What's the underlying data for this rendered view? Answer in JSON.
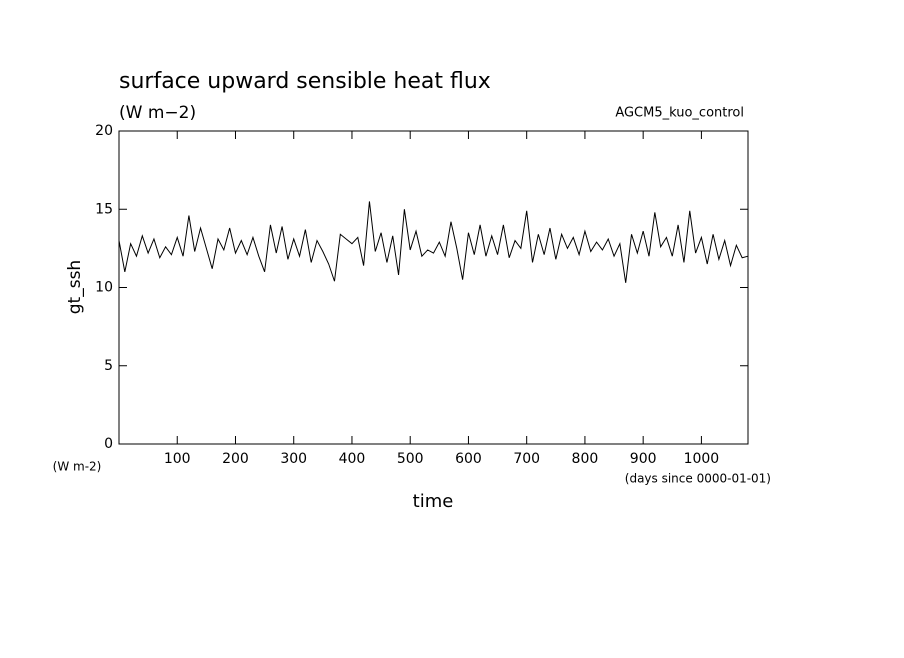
{
  "chart_data": {
    "type": "line",
    "title": "surface upward sensible heat flux",
    "subtitle": "(W m−2)",
    "annotation": "AGCM5_kuo_control",
    "y_label": "gt_ssh",
    "y_units": "(W m-2)",
    "x_label": "time",
    "x_units": "(days since 0000-01-01)",
    "xlim": [
      0,
      1080
    ],
    "ylim": [
      0,
      20
    ],
    "xticks": [
      100,
      200,
      300,
      400,
      500,
      600,
      700,
      800,
      900,
      1000
    ],
    "yticks": [
      0,
      5,
      10,
      15,
      20
    ],
    "grid": false,
    "x": [
      0,
      10,
      20,
      30,
      40,
      50,
      60,
      70,
      80,
      90,
      100,
      110,
      120,
      130,
      140,
      150,
      160,
      170,
      180,
      190,
      200,
      210,
      220,
      230,
      240,
      250,
      260,
      270,
      280,
      290,
      300,
      310,
      320,
      330,
      340,
      350,
      360,
      370,
      380,
      390,
      400,
      410,
      420,
      430,
      440,
      450,
      460,
      470,
      480,
      490,
      500,
      510,
      520,
      530,
      540,
      550,
      560,
      570,
      580,
      590,
      600,
      610,
      620,
      630,
      640,
      650,
      660,
      670,
      680,
      690,
      700,
      710,
      720,
      730,
      740,
      750,
      760,
      770,
      780,
      790,
      800,
      810,
      820,
      830,
      840,
      850,
      860,
      870,
      880,
      890,
      900,
      910,
      920,
      930,
      940,
      950,
      960,
      970,
      980,
      990,
      1000,
      1010,
      1020,
      1030,
      1040,
      1050,
      1060,
      1070,
      1080
    ],
    "series": [
      {
        "color": "#000000",
        "values": [
          13.0,
          11.0,
          12.8,
          12.0,
          13.3,
          12.2,
          13.1,
          11.9,
          12.6,
          12.1,
          13.2,
          12.0,
          14.6,
          12.3,
          13.8,
          12.5,
          11.2,
          13.1,
          12.4,
          13.8,
          12.2,
          13.0,
          12.1,
          13.2,
          12.0,
          11.0,
          14.0,
          12.2,
          13.9,
          11.8,
          13.1,
          12.0,
          13.7,
          11.6,
          13.0,
          12.3,
          11.5,
          10.4,
          13.4,
          13.1,
          12.8,
          13.2,
          11.4,
          15.5,
          12.3,
          13.5,
          11.6,
          13.3,
          10.8,
          15.0,
          12.4,
          13.6,
          12.0,
          12.4,
          12.2,
          12.9,
          12.0,
          14.2,
          12.5,
          10.5,
          13.5,
          12.1,
          14.0,
          12.0,
          13.3,
          12.1,
          14.0,
          11.9,
          13.0,
          12.5,
          14.9,
          11.6,
          13.4,
          12.1,
          13.8,
          11.8,
          13.4,
          12.5,
          13.2,
          12.1,
          13.6,
          12.3,
          12.9,
          12.4,
          13.1,
          12.0,
          12.8,
          10.3,
          13.4,
          12.2,
          13.6,
          12.0,
          14.8,
          12.6,
          13.2,
          12.0,
          14.0,
          11.6,
          14.9,
          12.2,
          13.2,
          11.5,
          13.4,
          11.8,
          13.0,
          11.4,
          12.7,
          11.9,
          12.0
        ]
      }
    ]
  }
}
